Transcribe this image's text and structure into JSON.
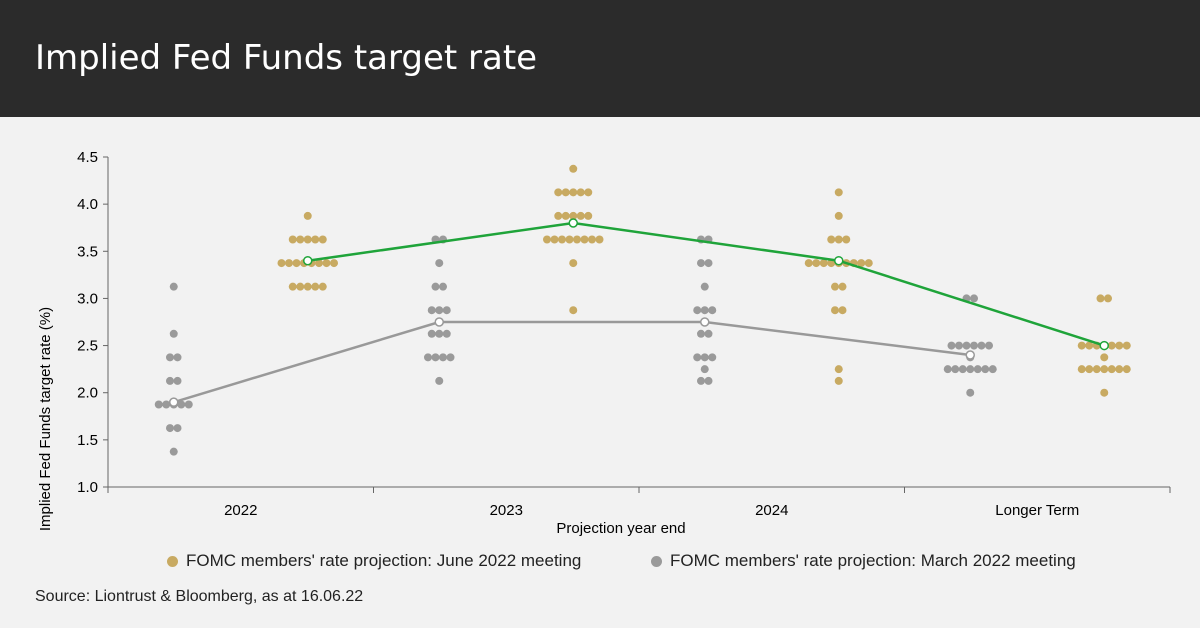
{
  "title": "Implied Fed Funds target rate",
  "source": "Source: Liontrust & Bloomberg, as at 16.06.22",
  "colors": {
    "june": "#c8aa62",
    "march": "#9a9a9a",
    "june_median": "#1fa43a",
    "march_median": "#999999"
  },
  "legend": {
    "june": "FOMC members' rate projection: June 2022 meeting",
    "march": "FOMC members' rate projection: March 2022 meeting"
  },
  "chart_data": {
    "type": "scatter",
    "title": "Implied Fed Funds target rate",
    "xlabel": "Projection year end",
    "ylabel": "Implied Fed Funds target rate (%)",
    "ylim": [
      1.0,
      4.5
    ],
    "yticks": [
      "1.0",
      "1.5",
      "2.0",
      "2.5",
      "3.0",
      "3.5",
      "4.0",
      "4.5"
    ],
    "categories": [
      "2022",
      "2023",
      "2024",
      "Longer Term"
    ],
    "series": [
      {
        "name": "FOMC members' rate projection: March 2022 meeting",
        "dots": [
          [
            {
              "v": 3.125,
              "n": 1
            },
            {
              "v": 2.625,
              "n": 1
            },
            {
              "v": 2.375,
              "n": 2
            },
            {
              "v": 2.125,
              "n": 2
            },
            {
              "v": 1.875,
              "n": 5
            },
            {
              "v": 1.625,
              "n": 2
            },
            {
              "v": 1.375,
              "n": 1
            }
          ],
          [
            {
              "v": 3.625,
              "n": 2
            },
            {
              "v": 3.375,
              "n": 1
            },
            {
              "v": 3.125,
              "n": 2
            },
            {
              "v": 2.875,
              "n": 3
            },
            {
              "v": 2.625,
              "n": 3
            },
            {
              "v": 2.375,
              "n": 4
            },
            {
              "v": 2.125,
              "n": 1
            }
          ],
          [
            {
              "v": 3.625,
              "n": 2
            },
            {
              "v": 3.375,
              "n": 2
            },
            {
              "v": 3.125,
              "n": 1
            },
            {
              "v": 2.875,
              "n": 3
            },
            {
              "v": 2.625,
              "n": 2
            },
            {
              "v": 2.375,
              "n": 3
            },
            {
              "v": 2.25,
              "n": 1
            },
            {
              "v": 2.125,
              "n": 2
            }
          ],
          [
            {
              "v": 3.0,
              "n": 2
            },
            {
              "v": 2.5,
              "n": 6
            },
            {
              "v": 2.375,
              "n": 1
            },
            {
              "v": 2.25,
              "n": 7
            },
            {
              "v": 2.0,
              "n": 1
            }
          ]
        ],
        "median": [
          1.9,
          2.75,
          2.75,
          2.4
        ]
      },
      {
        "name": "FOMC members' rate projection: June 2022 meeting",
        "dots": [
          [
            {
              "v": 3.875,
              "n": 1
            },
            {
              "v": 3.625,
              "n": 5
            },
            {
              "v": 3.375,
              "n": 8
            },
            {
              "v": 3.125,
              "n": 5
            }
          ],
          [
            {
              "v": 4.375,
              "n": 1
            },
            {
              "v": 4.125,
              "n": 5
            },
            {
              "v": 3.875,
              "n": 5
            },
            {
              "v": 3.625,
              "n": 8
            },
            {
              "v": 3.375,
              "n": 1
            },
            {
              "v": 2.875,
              "n": 1
            }
          ],
          [
            {
              "v": 4.125,
              "n": 1
            },
            {
              "v": 3.875,
              "n": 1
            },
            {
              "v": 3.625,
              "n": 3
            },
            {
              "v": 3.375,
              "n": 9
            },
            {
              "v": 3.125,
              "n": 2
            },
            {
              "v": 2.875,
              "n": 2
            },
            {
              "v": 2.25,
              "n": 1
            },
            {
              "v": 2.125,
              "n": 1
            }
          ],
          [
            {
              "v": 3.0,
              "n": 2
            },
            {
              "v": 2.5,
              "n": 7
            },
            {
              "v": 2.375,
              "n": 1
            },
            {
              "v": 2.25,
              "n": 7
            },
            {
              "v": 2.0,
              "n": 1
            }
          ]
        ],
        "median": [
          3.4,
          3.8,
          3.4,
          2.5
        ]
      }
    ]
  }
}
